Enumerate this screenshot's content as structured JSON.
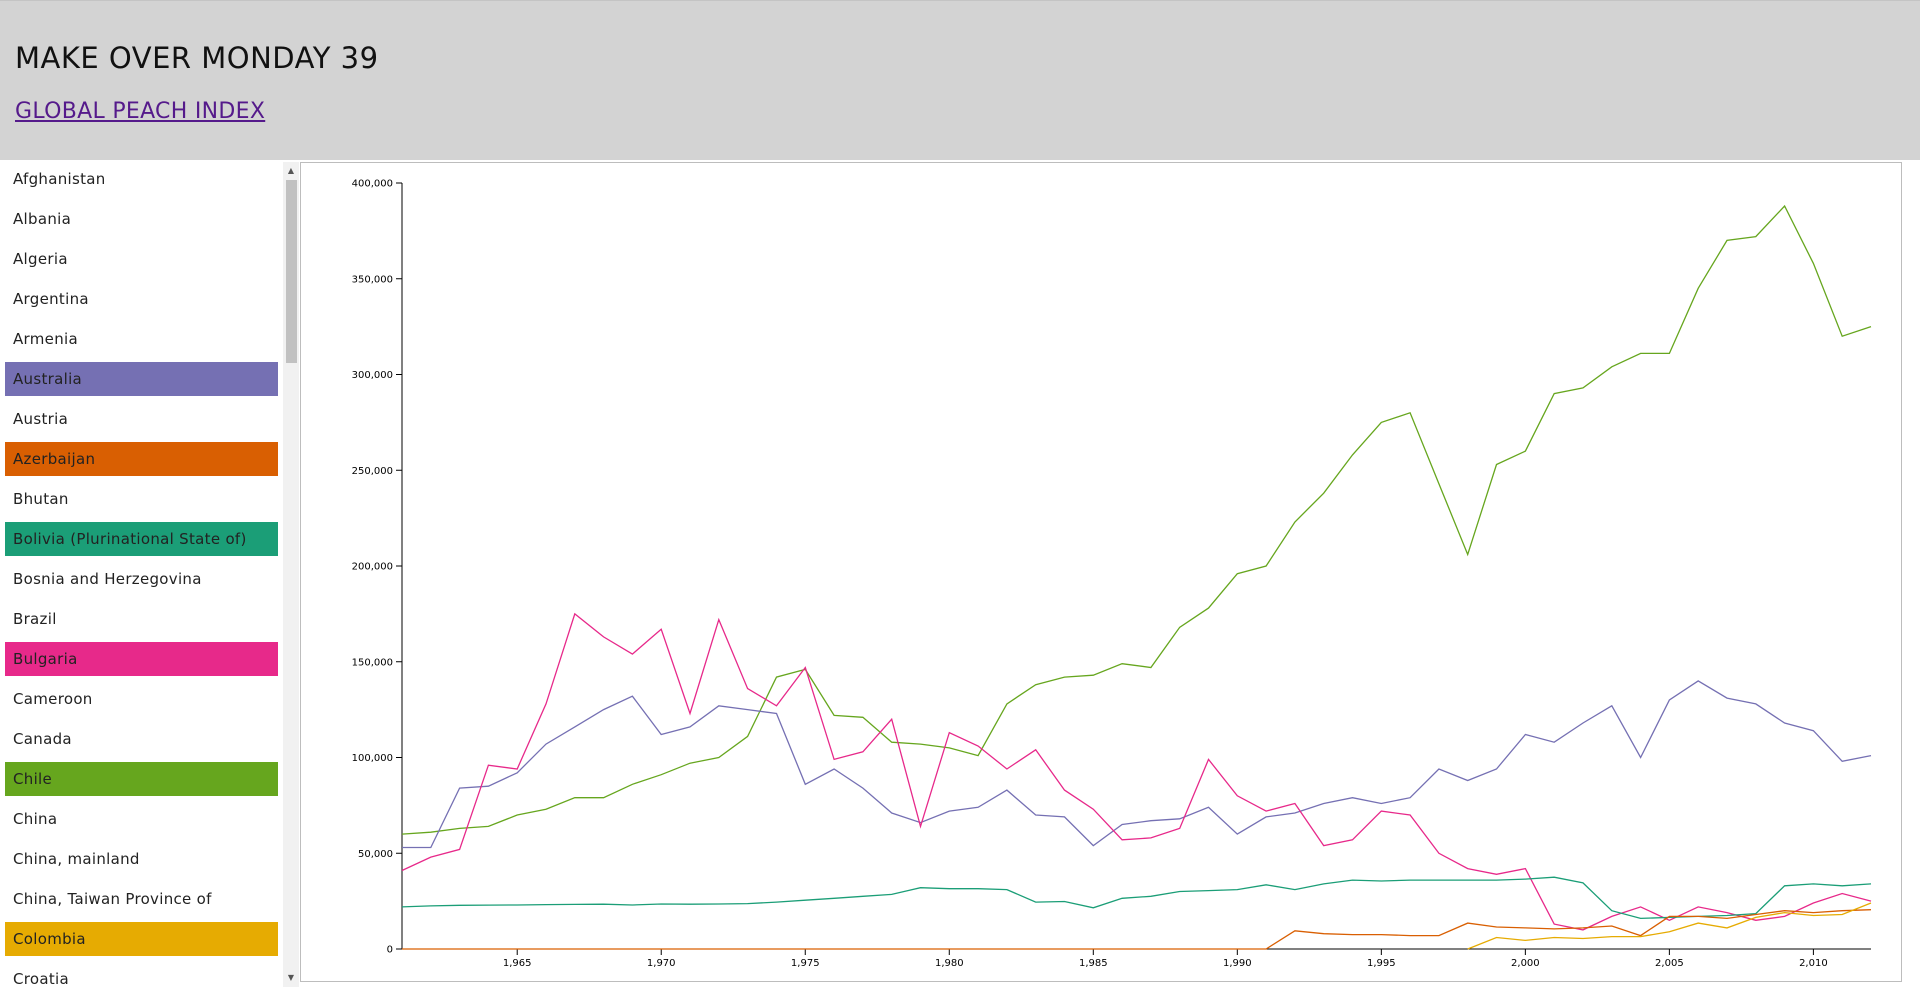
{
  "header": {
    "title": "MAKE OVER MONDAY 39",
    "link_text": "GLOBAL PEACH INDEX"
  },
  "sidebar": {
    "countries": [
      {
        "name": "Afghanistan",
        "color": ""
      },
      {
        "name": "Albania",
        "color": ""
      },
      {
        "name": "Algeria",
        "color": ""
      },
      {
        "name": "Argentina",
        "color": ""
      },
      {
        "name": "Armenia",
        "color": ""
      },
      {
        "name": "Australia",
        "color": "#7570b3"
      },
      {
        "name": "Austria",
        "color": ""
      },
      {
        "name": "Azerbaijan",
        "color": "#d95f02"
      },
      {
        "name": "Bhutan",
        "color": ""
      },
      {
        "name": "Bolivia (Plurinational State of)",
        "color": "#1b9e77"
      },
      {
        "name": "Bosnia and Herzegovina",
        "color": ""
      },
      {
        "name": "Brazil",
        "color": ""
      },
      {
        "name": "Bulgaria",
        "color": "#e7298a"
      },
      {
        "name": "Cameroon",
        "color": ""
      },
      {
        "name": "Canada",
        "color": ""
      },
      {
        "name": "Chile",
        "color": "#66a61e"
      },
      {
        "name": "China",
        "color": ""
      },
      {
        "name": "China, mainland",
        "color": ""
      },
      {
        "name": "China, Taiwan Province of",
        "color": ""
      },
      {
        "name": "Colombia",
        "color": "#e6ab02"
      },
      {
        "name": "Croatia",
        "color": ""
      }
    ]
  },
  "chart_data": {
    "type": "line",
    "xlim": [
      1961,
      2012
    ],
    "ylim": [
      0,
      400000
    ],
    "x_ticks": [
      1965,
      1970,
      1975,
      1980,
      1985,
      1990,
      1995,
      2000,
      2005,
      2010
    ],
    "x_tick_labels": [
      "1,965",
      "1,970",
      "1,975",
      "1,980",
      "1,985",
      "1,990",
      "1,995",
      "2,000",
      "2,005",
      "2,010"
    ],
    "y_ticks": [
      0,
      50000,
      100000,
      150000,
      200000,
      250000,
      300000,
      350000,
      400000
    ],
    "y_tick_labels": [
      "0",
      "50,000",
      "100,000",
      "150,000",
      "200,000",
      "250,000",
      "300,000",
      "350,000",
      "400,000"
    ],
    "grid": false,
    "x": [
      1961,
      1962,
      1963,
      1964,
      1965,
      1966,
      1967,
      1968,
      1969,
      1970,
      1971,
      1972,
      1973,
      1974,
      1975,
      1976,
      1977,
      1978,
      1979,
      1980,
      1981,
      1982,
      1983,
      1984,
      1985,
      1986,
      1987,
      1988,
      1989,
      1990,
      1991,
      1992,
      1993,
      1994,
      1995,
      1996,
      1997,
      1998,
      1999,
      2000,
      2001,
      2002,
      2003,
      2004,
      2005,
      2006,
      2007,
      2008,
      2009,
      2010,
      2011,
      2012
    ],
    "series": [
      {
        "color": "#66a61e",
        "values": [
          60000,
          61000,
          63000,
          64000,
          70000,
          73000,
          79000,
          79000,
          86000,
          91000,
          97000,
          100000,
          111000,
          142000,
          146000,
          122000,
          121000,
          108000,
          107000,
          105000,
          101000,
          128000,
          138000,
          142000,
          143000,
          149000,
          147000,
          168000,
          178000,
          196000,
          200000,
          223000,
          238000,
          258000,
          275000,
          280000,
          243000,
          206000,
          253000,
          260000,
          290000,
          293000,
          304000,
          311000,
          311000,
          345000,
          370000,
          372000,
          388000,
          358000,
          320000,
          325000
        ]
      },
      {
        "color": "#7570b3",
        "values": [
          53000,
          53000,
          84000,
          85000,
          92000,
          107000,
          116000,
          125000,
          132000,
          112000,
          116000,
          127000,
          125000,
          123000,
          86000,
          94000,
          84000,
          71000,
          66000,
          72000,
          74000,
          83000,
          70000,
          69000,
          54000,
          65000,
          67000,
          68000,
          74000,
          60000,
          69000,
          71000,
          76000,
          79000,
          76000,
          79000,
          94000,
          88000,
          94000,
          112000,
          108000,
          118000,
          127000,
          100000,
          130000,
          140000,
          131000,
          128000,
          118000,
          114000,
          98000,
          101000
        ]
      },
      {
        "color": "#e7298a",
        "values": [
          41000,
          48000,
          52000,
          96000,
          94000,
          128000,
          175000,
          163000,
          154000,
          167000,
          123000,
          172000,
          136000,
          127000,
          147000,
          99000,
          103000,
          120000,
          64000,
          113000,
          106000,
          94000,
          104000,
          83000,
          73000,
          57000,
          58000,
          63000,
          99000,
          80000,
          72000,
          76000,
          54000,
          57000,
          72000,
          70000,
          50000,
          42000,
          39000,
          42000,
          13000,
          10000,
          17000,
          22000,
          15000,
          22000,
          19000,
          15000,
          17000,
          24000,
          29000,
          25000
        ]
      },
      {
        "color": "#1b9e77",
        "values": [
          22000,
          22500,
          22800,
          22900,
          23000,
          23200,
          23300,
          23400,
          23000,
          23500,
          23400,
          23500,
          23700,
          24500,
          25500,
          26500,
          27500,
          28500,
          32000,
          31500,
          31500,
          31000,
          24500,
          24800,
          21500,
          26500,
          27500,
          30000,
          30500,
          31000,
          33500,
          31000,
          34000,
          36000,
          35500,
          36000,
          36000,
          36000,
          36000,
          36500,
          37500,
          34500,
          20000,
          16000,
          16500,
          17000,
          17500,
          18500,
          33000,
          34000,
          33000,
          34000
        ]
      },
      {
        "color": "#d95f02",
        "values": [
          0,
          0,
          0,
          0,
          0,
          0,
          0,
          0,
          0,
          0,
          0,
          0,
          0,
          0,
          0,
          0,
          0,
          0,
          0,
          0,
          0,
          0,
          0,
          0,
          0,
          0,
          0,
          0,
          0,
          0,
          0,
          9500,
          8000,
          7500,
          7500,
          7000,
          7000,
          13500,
          11500,
          11000,
          10500,
          11000,
          12000,
          7000,
          17000,
          17000,
          16000,
          18000,
          20000,
          19000,
          20000,
          20500
        ]
      },
      {
        "color": "#e6ab02",
        "values": [
          null,
          null,
          null,
          null,
          null,
          null,
          null,
          null,
          null,
          null,
          null,
          null,
          null,
          null,
          null,
          null,
          null,
          null,
          null,
          null,
          null,
          null,
          null,
          null,
          null,
          null,
          null,
          null,
          null,
          null,
          null,
          null,
          null,
          null,
          null,
          null,
          null,
          0,
          6000,
          4500,
          6000,
          5500,
          6500,
          6500,
          9000,
          13500,
          11000,
          16500,
          19000,
          17500,
          18000,
          24000
        ]
      }
    ]
  }
}
